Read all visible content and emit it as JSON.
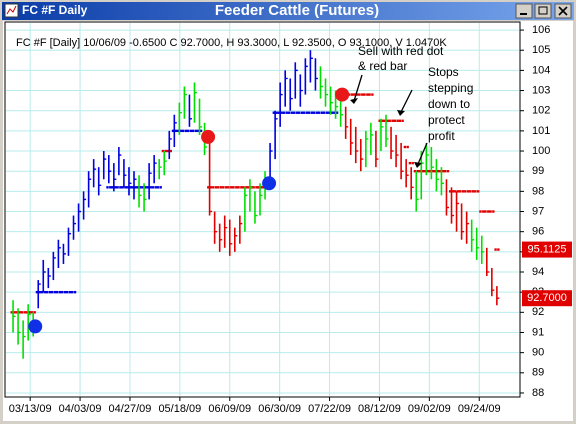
{
  "chart_data": {
    "type": "ohlc",
    "window_title": "FC #F Daily",
    "title": "Feeder Cattle (Futures)",
    "info": "FC #F [Daily] 10/06/09 -0.6500 C 92.7000, H 93.3000, L 92.3500, O 93.1000, V 1.0470K",
    "xlim": [
      0,
      100
    ],
    "xticks": [
      {
        "value": 4.4,
        "label": "03/13/09"
      },
      {
        "value": 14.3,
        "label": "04/03/09"
      },
      {
        "value": 24.2,
        "label": "04/27/09"
      },
      {
        "value": 34.1,
        "label": "05/18/09"
      },
      {
        "value": 44,
        "label": "06/09/09"
      },
      {
        "value": 53.9,
        "label": "06/30/09"
      },
      {
        "value": 63.8,
        "label": "07/22/09"
      },
      {
        "value": 73.7,
        "label": "08/12/09"
      },
      {
        "value": 83.6,
        "label": "09/02/09"
      },
      {
        "value": 93.5,
        "label": "09/24/09"
      }
    ],
    "ylim": [
      87.8,
      106.4
    ],
    "yticks": [
      88,
      89,
      90,
      91,
      92,
      93,
      94,
      95,
      96,
      97,
      98,
      99,
      100,
      101,
      102,
      103,
      104,
      105,
      106
    ],
    "grid": true,
    "palette": {
      "b": "#0000e0",
      "g": "#00e000",
      "r": "#e00000"
    },
    "bars": {
      "x": [
        1,
        2,
        3,
        4,
        5,
        6,
        7,
        8,
        9,
        10,
        11,
        12,
        13,
        14,
        15,
        16,
        17,
        18,
        19,
        20,
        21,
        22,
        23,
        24,
        25,
        26,
        27,
        28,
        29,
        30,
        31,
        32,
        33,
        34,
        35,
        36,
        37,
        38,
        39,
        40,
        41,
        42,
        43,
        44,
        45,
        46,
        47,
        48,
        49,
        50,
        51,
        52,
        53,
        54,
        55,
        56,
        57,
        58,
        59,
        60,
        61,
        62,
        63,
        64,
        65,
        66,
        67,
        68,
        69,
        70,
        71,
        72,
        73,
        74,
        75,
        76,
        77,
        78,
        79,
        80,
        81,
        82,
        83,
        84,
        85,
        86,
        87,
        88,
        89,
        90,
        91,
        92,
        93,
        94,
        95,
        96,
        97
      ],
      "high": [
        92.6,
        92.2,
        91.6,
        92.4,
        92.0,
        93.6,
        94.6,
        94.2,
        95.0,
        95.6,
        95.4,
        96.2,
        96.8,
        97.4,
        98.0,
        99.0,
        99.6,
        99.2,
        100.0,
        99.8,
        99.4,
        100.2,
        99.6,
        99.2,
        99.0,
        98.8,
        98.4,
        99.4,
        99.8,
        99.6,
        100.0,
        101.0,
        101.8,
        102.4,
        103.2,
        102.8,
        103.4,
        102.6,
        101.4,
        100.4,
        97.0,
        96.4,
        96.8,
        96.6,
        96.2,
        96.8,
        98.2,
        98.6,
        98.0,
        98.4,
        99.0,
        100.4,
        102.0,
        103.4,
        104.0,
        103.6,
        104.4,
        103.8,
        104.6,
        105.0,
        104.6,
        104.2,
        103.6,
        103.2,
        103.0,
        102.8,
        102.2,
        101.6,
        101.2,
        100.6,
        101.0,
        101.4,
        101.0,
        101.6,
        101.8,
        101.2,
        100.8,
        100.4,
        99.6,
        99.2,
        99.0,
        100.0,
        100.4,
        100.2,
        99.6,
        99.2,
        98.6,
        98.2,
        98.0,
        97.4,
        97.0,
        96.6,
        96.2,
        95.8,
        95.2,
        94.2,
        93.3
      ],
      "low": [
        91.0,
        90.4,
        89.7,
        90.6,
        90.8,
        92.2,
        93.0,
        93.2,
        93.6,
        94.2,
        94.4,
        94.8,
        95.6,
        96.0,
        96.6,
        97.2,
        98.2,
        97.8,
        98.6,
        98.4,
        98.0,
        98.8,
        98.2,
        97.8,
        97.6,
        97.2,
        97.0,
        97.6,
        98.4,
        98.6,
        98.8,
        99.6,
        100.2,
        100.8,
        101.6,
        101.2,
        101.4,
        100.8,
        99.8,
        96.8,
        95.4,
        95.0,
        95.2,
        94.8,
        95.0,
        95.4,
        96.0,
        97.0,
        96.4,
        96.8,
        97.6,
        98.2,
        99.6,
        101.2,
        102.2,
        102.0,
        102.6,
        102.2,
        102.8,
        103.4,
        103.0,
        102.6,
        102.2,
        101.8,
        101.6,
        101.2,
        100.6,
        99.8,
        99.4,
        99.0,
        99.2,
        99.8,
        99.2,
        100.0,
        100.2,
        99.6,
        99.2,
        98.6,
        98.2,
        97.6,
        97.0,
        97.6,
        98.8,
        98.6,
        98.0,
        97.8,
        96.8,
        96.4,
        96.0,
        95.6,
        95.4,
        95.0,
        94.6,
        94.4,
        93.8,
        92.8,
        92.35
      ],
      "close": [
        91.8,
        91.0,
        90.8,
        91.9,
        91.5,
        93.4,
        94.0,
        93.8,
        94.7,
        95.2,
        94.9,
        95.9,
        96.4,
        97.0,
        97.6,
        98.6,
        99.1,
        98.3,
        99.6,
        99.0,
        98.6,
        99.8,
        98.8,
        98.4,
        98.6,
        97.8,
        97.6,
        98.9,
        99.4,
        99.2,
        99.5,
        100.6,
        101.4,
        101.9,
        102.8,
        101.6,
        102.9,
        101.2,
        100.2,
        97.0,
        96.0,
        95.6,
        96.2,
        95.4,
        95.8,
        96.4,
        97.8,
        98.2,
        96.8,
        97.8,
        98.6,
        100.0,
        101.6,
        102.8,
        103.6,
        102.6,
        104.0,
        103.0,
        104.2,
        104.6,
        103.6,
        103.2,
        102.8,
        102.4,
        102.2,
        101.8,
        101.2,
        100.4,
        100.0,
        99.6,
        100.6,
        100.8,
        99.6,
        101.2,
        100.6,
        100.0,
        99.8,
        99.0,
        98.8,
        98.2,
        97.6,
        99.4,
        99.8,
        99.2,
        98.6,
        98.4,
        97.2,
        96.8,
        97.4,
        96.0,
        96.4,
        95.6,
        95.2,
        95.0,
        94.0,
        93.1,
        92.7
      ],
      "colors": [
        "g",
        "g",
        "g",
        "g",
        "g",
        "b",
        "b",
        "b",
        "b",
        "b",
        "b",
        "b",
        "b",
        "b",
        "b",
        "b",
        "b",
        "b",
        "b",
        "b",
        "b",
        "b",
        "b",
        "b",
        "b",
        "g",
        "g",
        "b",
        "b",
        "g",
        "g",
        "b",
        "b",
        "g",
        "g",
        "b",
        "g",
        "g",
        "g",
        "r",
        "r",
        "r",
        "r",
        "r",
        "r",
        "r",
        "g",
        "g",
        "g",
        "g",
        "g",
        "b",
        "b",
        "b",
        "b",
        "b",
        "b",
        "b",
        "b",
        "b",
        "b",
        "g",
        "g",
        "g",
        "g",
        "g",
        "r",
        "r",
        "r",
        "r",
        "g",
        "g",
        "r",
        "g",
        "g",
        "r",
        "r",
        "r",
        "r",
        "r",
        "g",
        "g",
        "g",
        "g",
        "g",
        "g",
        "r",
        "r",
        "r",
        "r",
        "r",
        "g",
        "g",
        "g",
        "r",
        "r",
        "r"
      ]
    },
    "stops": {
      "values": [
        92,
        92,
        92,
        92,
        92,
        93,
        93,
        93,
        93,
        93,
        93,
        93,
        93,
        null,
        null,
        null,
        null,
        null,
        null,
        98.2,
        98.2,
        98.2,
        98.2,
        98.2,
        98.2,
        98.2,
        98.2,
        98.2,
        98.2,
        98.2,
        100,
        100,
        101,
        101,
        101,
        101,
        101,
        101,
        null,
        98.2,
        98.2,
        98.2,
        98.2,
        98.2,
        98.2,
        98.2,
        98.2,
        98.2,
        98.2,
        98.2,
        98.2,
        null,
        101.9,
        101.9,
        101.9,
        101.9,
        101.9,
        101.9,
        101.9,
        101.9,
        101.9,
        101.9,
        101.9,
        101.9,
        101.9,
        102.8,
        102.8,
        102.8,
        102.8,
        102.8,
        102.8,
        102.8,
        null,
        101.5,
        101.5,
        101.5,
        101.5,
        101.5,
        100.2,
        99.4,
        99,
        99,
        99,
        99,
        99,
        99,
        99,
        98,
        98,
        98,
        98,
        98,
        98,
        97,
        97,
        97,
        95.1125
      ],
      "colors": [
        "r",
        "r",
        "r",
        "r",
        "r",
        "b",
        "b",
        "b",
        "b",
        "b",
        "b",
        "b",
        "b",
        null,
        null,
        null,
        null,
        null,
        null,
        "b",
        "b",
        "b",
        "b",
        "b",
        "b",
        "b",
        "b",
        "b",
        "b",
        "b",
        "r",
        "r",
        "b",
        "b",
        "b",
        "b",
        "b",
        "b",
        null,
        "r",
        "r",
        "r",
        "r",
        "r",
        "r",
        "r",
        "r",
        "r",
        "r",
        "r",
        "r",
        null,
        "b",
        "b",
        "b",
        "b",
        "b",
        "b",
        "b",
        "b",
        "b",
        "b",
        "b",
        "b",
        "b",
        "r",
        "r",
        "r",
        "r",
        "r",
        "r",
        "r",
        null,
        "r",
        "r",
        "r",
        "r",
        "r",
        "r",
        "r",
        "r",
        "r",
        "r",
        "r",
        "r",
        "r",
        "r",
        "r",
        "r",
        "r",
        "r",
        "r",
        "r",
        "r",
        "r",
        "r",
        "r"
      ]
    },
    "signals": [
      {
        "x": 5.4,
        "value": 91.3,
        "color": "#1030e8"
      },
      {
        "x": 39.7,
        "value": 100.7,
        "color": "#e81818"
      },
      {
        "x": 51.8,
        "value": 98.4,
        "color": "#1030e8"
      },
      {
        "x": 66.3,
        "value": 102.8,
        "color": "#e81818"
      }
    ],
    "price_markers": [
      {
        "value": 95.1125,
        "label": "95.1125",
        "color": "#e00000"
      },
      {
        "value": 92.7,
        "label": "92.7000",
        "color": "#e00000"
      }
    ],
    "annotations": [
      {
        "lines": [
          "Sell with red dot",
          "& red bar"
        ]
      },
      {
        "lines": [
          "Stops",
          "stepping",
          "down to",
          "protect",
          "profit"
        ]
      }
    ]
  }
}
